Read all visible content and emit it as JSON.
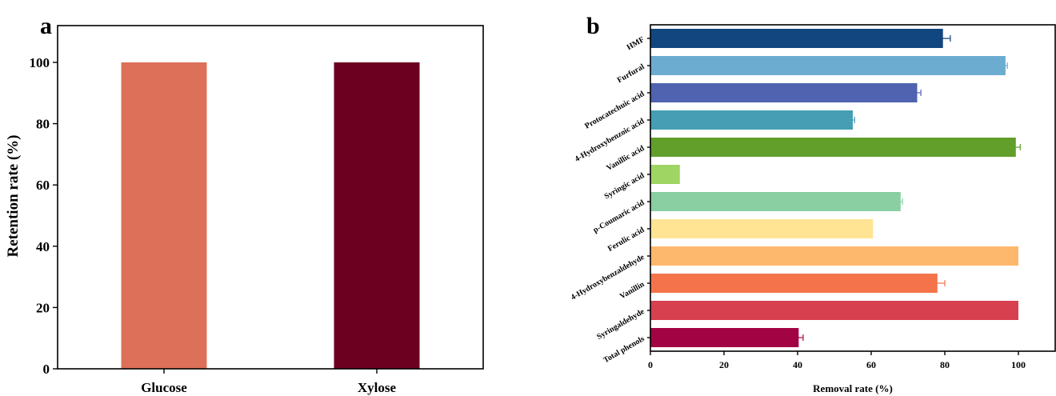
{
  "chart_data": [
    {
      "panel": "a",
      "type": "bar",
      "categories": [
        "Glucose",
        "Xylose"
      ],
      "values": [
        100,
        100
      ],
      "colors": [
        "#dd7059",
        "#6b0020"
      ],
      "ylabel": "Retention rate (%)",
      "xlabel": "",
      "ylim": [
        0,
        112
      ],
      "yticks": [
        "0",
        "20",
        "40",
        "60",
        "80",
        "100"
      ],
      "grid": false,
      "legend": "none"
    },
    {
      "panel": "b",
      "type": "bar",
      "orientation": "horizontal",
      "categories": [
        "HMF",
        "Furfural",
        "Protocatechuic acid",
        "4-Hydroxybenzoic acid",
        "Vanillic acid",
        "Syringic acid",
        "p-Coumaric acid",
        "Ferulic acid",
        "4-Hydroxybenzaldehyde",
        "Vanillin",
        "Syringaldehyde",
        "Total phenols"
      ],
      "values": [
        79.5,
        96.5,
        72.5,
        55,
        99.3,
        8,
        68,
        60.5,
        100,
        78,
        100,
        40.3
      ],
      "errors": [
        2,
        0.5,
        1,
        0.5,
        1.2,
        0,
        0.5,
        0,
        0,
        2,
        0,
        1.2
      ],
      "colors": [
        "#11467f",
        "#6cacd1",
        "#4f63b0",
        "#459eb4",
        "#629e2a",
        "#9ed563",
        "#89cfa2",
        "#ffe494",
        "#feb86d",
        "#f5734a",
        "#d6404f",
        "#a20443"
      ],
      "xlabel": "Removal rate (%)",
      "ylabel": "",
      "xlim": [
        0,
        110
      ],
      "xticks": [
        "0",
        "20",
        "40",
        "60",
        "80",
        "100"
      ],
      "grid": false,
      "legend": "none"
    }
  ],
  "panels": {
    "a": {
      "letter": "a"
    },
    "b": {
      "letter": "b"
    }
  }
}
